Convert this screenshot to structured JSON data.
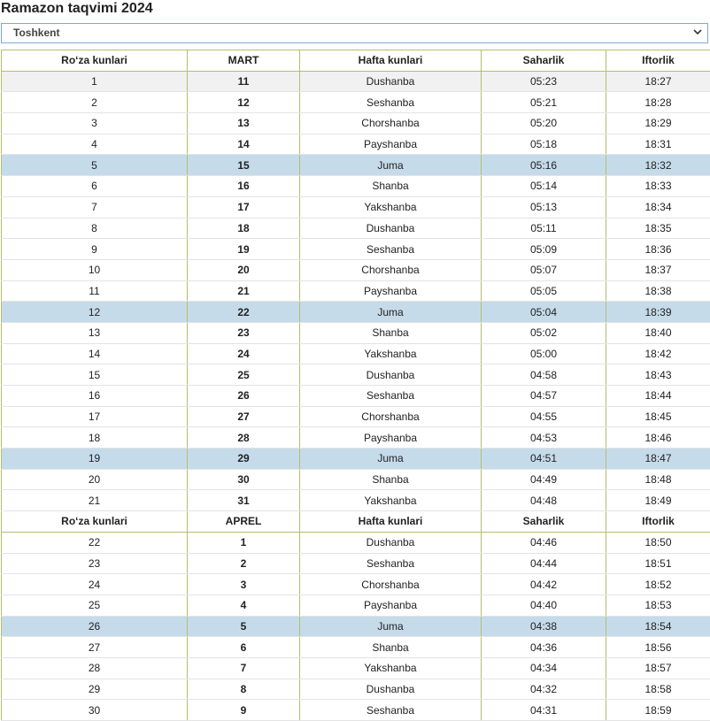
{
  "page": {
    "title": "Ramazon taqvimi 2024",
    "city_select": {
      "value": "Toshkent"
    },
    "colors": {
      "header_border": "#b5be6a",
      "friday_row": "#c6dbe9",
      "select_border": "#7ea7d8"
    }
  },
  "table": {
    "headers_mart": [
      "Ro‘za kunlari",
      "MART",
      "Hafta kunlari",
      "Saharlik",
      "Iftorlik"
    ],
    "rows_mart": [
      [
        "1",
        "11",
        "Dushanba",
        "05:23",
        "18:27"
      ],
      [
        "2",
        "12",
        "Seshanba",
        "05:21",
        "18:28"
      ],
      [
        "3",
        "13",
        "Chorshanba",
        "05:20",
        "18:29"
      ],
      [
        "4",
        "14",
        "Payshanba",
        "05:18",
        "18:31"
      ],
      [
        "5",
        "15",
        "Juma",
        "05:16",
        "18:32"
      ],
      [
        "6",
        "16",
        "Shanba",
        "05:14",
        "18:33"
      ],
      [
        "7",
        "17",
        "Yakshanba",
        "05:13",
        "18:34"
      ],
      [
        "8",
        "18",
        "Dushanba",
        "05:11",
        "18:35"
      ],
      [
        "9",
        "19",
        "Seshanba",
        "05:09",
        "18:36"
      ],
      [
        "10",
        "20",
        "Chorshanba",
        "05:07",
        "18:37"
      ],
      [
        "11",
        "21",
        "Payshanba",
        "05:05",
        "18:38"
      ],
      [
        "12",
        "22",
        "Juma",
        "05:04",
        "18:39"
      ],
      [
        "13",
        "23",
        "Shanba",
        "05:02",
        "18:40"
      ],
      [
        "14",
        "24",
        "Yakshanba",
        "05:00",
        "18:42"
      ],
      [
        "15",
        "25",
        "Dushanba",
        "04:58",
        "18:43"
      ],
      [
        "16",
        "26",
        "Seshanba",
        "04:57",
        "18:44"
      ],
      [
        "17",
        "27",
        "Chorshanba",
        "04:55",
        "18:45"
      ],
      [
        "18",
        "28",
        "Payshanba",
        "04:53",
        "18:46"
      ],
      [
        "19",
        "29",
        "Juma",
        "04:51",
        "18:47"
      ],
      [
        "20",
        "30",
        "Shanba",
        "04:49",
        "18:48"
      ],
      [
        "21",
        "31",
        "Yakshanba",
        "04:48",
        "18:49"
      ]
    ],
    "headers_aprel": [
      "Ro‘za kunlari",
      "APREL",
      "Hafta kunlari",
      "Saharlik",
      "Iftorlik"
    ],
    "rows_aprel": [
      [
        "22",
        "1",
        "Dushanba",
        "04:46",
        "18:50"
      ],
      [
        "23",
        "2",
        "Seshanba",
        "04:44",
        "18:51"
      ],
      [
        "24",
        "3",
        "Chorshanba",
        "04:42",
        "18:52"
      ],
      [
        "25",
        "4",
        "Payshanba",
        "04:40",
        "18:53"
      ],
      [
        "26",
        "5",
        "Juma",
        "04:38",
        "18:54"
      ],
      [
        "27",
        "6",
        "Shanba",
        "04:36",
        "18:56"
      ],
      [
        "28",
        "7",
        "Yakshanba",
        "04:34",
        "18:57"
      ],
      [
        "29",
        "8",
        "Dushanba",
        "04:32",
        "18:58"
      ],
      [
        "30",
        "9",
        "Seshanba",
        "04:31",
        "18:59"
      ]
    ]
  }
}
